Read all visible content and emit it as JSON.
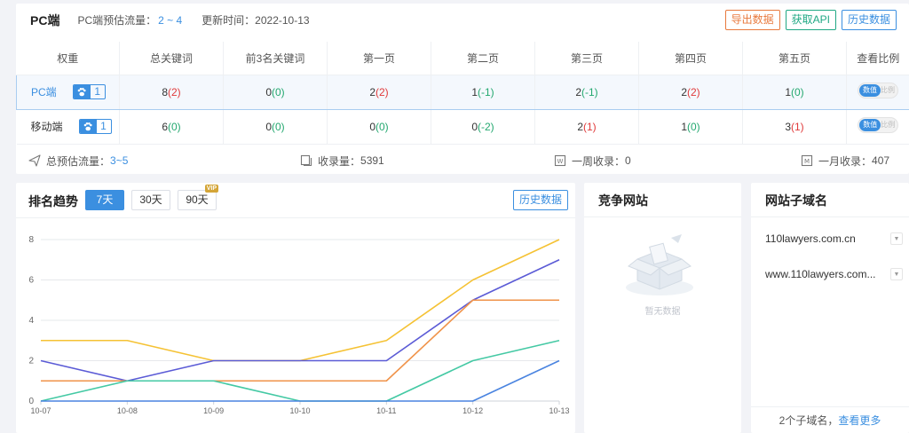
{
  "top": {
    "title": "PC端",
    "traffic_label": "PC端预估流量：",
    "traffic_value": "2 ~ 4",
    "update_label": "更新时间：",
    "update_value": "2022-10-13",
    "buttons": {
      "export": "导出数据",
      "api": "获取API",
      "history": "历史数据"
    }
  },
  "table": {
    "headers": [
      "权重",
      "总关键词",
      "前3名关键词",
      "第一页",
      "第二页",
      "第三页",
      "第四页",
      "第五页",
      "查看比例"
    ],
    "rows": [
      {
        "name": "PC端",
        "badge_num": "1",
        "cells": [
          {
            "main": "8",
            "delta": "(2)",
            "dir": "up"
          },
          {
            "main": "0",
            "delta": "(0)",
            "dir": "zero"
          },
          {
            "main": "2",
            "delta": "(2)",
            "dir": "up"
          },
          {
            "main": "1",
            "delta": "(-1)",
            "dir": "down"
          },
          {
            "main": "2",
            "delta": "(-1)",
            "dir": "down"
          },
          {
            "main": "2",
            "delta": "(2)",
            "dir": "up"
          },
          {
            "main": "1",
            "delta": "(0)",
            "dir": "zero"
          }
        ],
        "toggle_on": "数值",
        "toggle_off": "比例"
      },
      {
        "name": "移动端",
        "badge_num": "1",
        "cells": [
          {
            "main": "6",
            "delta": "(0)",
            "dir": "zero"
          },
          {
            "main": "0",
            "delta": "(0)",
            "dir": "zero"
          },
          {
            "main": "0",
            "delta": "(0)",
            "dir": "zero"
          },
          {
            "main": "0",
            "delta": "(-2)",
            "dir": "down"
          },
          {
            "main": "2",
            "delta": "(1)",
            "dir": "up"
          },
          {
            "main": "1",
            "delta": "(0)",
            "dir": "zero"
          },
          {
            "main": "3",
            "delta": "(1)",
            "dir": "up"
          }
        ],
        "toggle_on": "数值",
        "toggle_off": "比例"
      }
    ]
  },
  "summary": {
    "total_traffic_label": "总预估流量：",
    "total_traffic_value": "3~5",
    "indexed_label": "收录量：",
    "indexed_value": "5391",
    "week_label": "一周收录：",
    "week_value": "0",
    "month_label": "一月收录：",
    "month_value": "407"
  },
  "trend": {
    "title": "排名趋势",
    "ranges": [
      "7天",
      "30天",
      "90天"
    ],
    "active_range": "7天",
    "vip": "VIP",
    "history": "历史数据"
  },
  "chart_data": {
    "type": "line",
    "x": [
      "10-07",
      "10-08",
      "10-09",
      "10-10",
      "10-11",
      "10-12",
      "10-13"
    ],
    "ylim": [
      0,
      8
    ],
    "yticks": [
      0,
      2,
      4,
      6,
      8
    ],
    "grid": true,
    "series": [
      {
        "color": "#f5c234",
        "values": [
          3,
          3,
          2,
          2,
          3,
          6,
          8
        ]
      },
      {
        "color": "#5b5bd6",
        "values": [
          2,
          1,
          2,
          2,
          2,
          5,
          7
        ]
      },
      {
        "color": "#f0934a",
        "values": [
          1,
          1,
          1,
          1,
          1,
          5,
          5
        ]
      },
      {
        "color": "#44c9a4",
        "values": [
          0,
          1,
          1,
          0,
          0,
          2,
          3
        ]
      },
      {
        "color": "#4a84e0",
        "values": [
          0,
          0,
          0,
          0,
          0,
          0,
          2
        ]
      }
    ]
  },
  "competitor": {
    "title": "竞争网站",
    "empty_text": "暂无数据"
  },
  "subdomains": {
    "title": "网站子域名",
    "items": [
      "110lawyers.com.cn",
      "www.110lawyers.com..."
    ],
    "footer_count": "2个子域名，",
    "footer_more": "查看更多"
  },
  "icons": {
    "paw": "baidu-paw-icon",
    "send": "send-icon",
    "doc": "document-icon",
    "week": "week-calendar-icon",
    "month": "month-calendar-icon",
    "caret": "caret-down-icon"
  }
}
